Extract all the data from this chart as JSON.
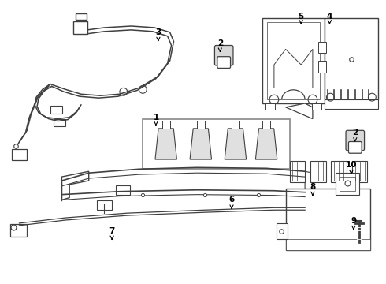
{
  "background_color": "#ffffff",
  "line_color": "#404040",
  "figsize": [
    4.9,
    3.6
  ],
  "dpi": 100,
  "xlim": [
    0,
    490
  ],
  "ylim": [
    0,
    360
  ]
}
